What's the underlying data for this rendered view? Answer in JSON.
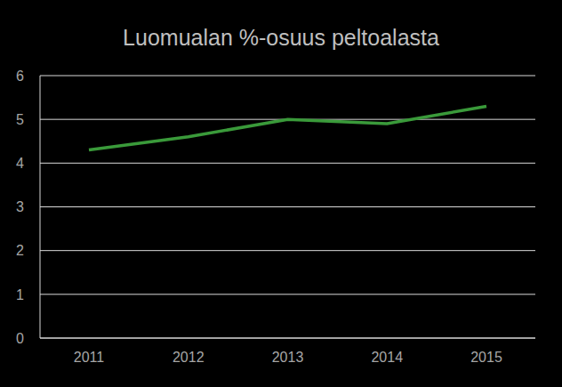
{
  "chart_data": {
    "type": "line",
    "title": "Luomualan %-osuus peltoalasta",
    "categories": [
      "2011",
      "2012",
      "2013",
      "2014",
      "2015"
    ],
    "values": [
      4.3,
      4.6,
      5.0,
      4.9,
      5.3
    ],
    "color": "#3a9a3a",
    "ylim": [
      0,
      6
    ],
    "yticks": [
      0,
      1,
      2,
      3,
      4,
      5,
      6
    ],
    "grid": true
  }
}
